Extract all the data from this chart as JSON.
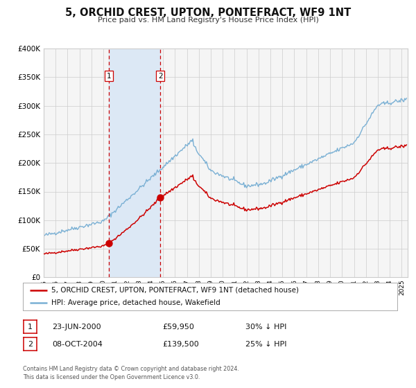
{
  "title": "5, ORCHID CREST, UPTON, PONTEFRACT, WF9 1NT",
  "subtitle": "Price paid vs. HM Land Registry's House Price Index (HPI)",
  "legend_line1": "5, ORCHID CREST, UPTON, PONTEFRACT, WF9 1NT (detached house)",
  "legend_line2": "HPI: Average price, detached house, Wakefield",
  "property_color": "#cc0000",
  "hpi_color": "#7ab0d4",
  "transaction1_date": "23-JUN-2000",
  "transaction1_price": "£59,950",
  "transaction1_hpi": "30% ↓ HPI",
  "transaction2_date": "08-OCT-2004",
  "transaction2_price": "£139,500",
  "transaction2_hpi": "25% ↓ HPI",
  "footer": "Contains HM Land Registry data © Crown copyright and database right 2024.\nThis data is licensed under the Open Government Licence v3.0.",
  "ylim": [
    0,
    400000
  ],
  "yticks": [
    0,
    50000,
    100000,
    150000,
    200000,
    250000,
    300000,
    350000,
    400000
  ],
  "xlim_start": 1995.0,
  "xlim_end": 2025.5,
  "transaction1_x": 2000.47,
  "transaction2_x": 2004.77,
  "transaction1_y": 59950,
  "transaction2_y": 139500,
  "background_color": "#ffffff",
  "plot_bg_color": "#f5f5f5",
  "shade_color": "#dce8f5",
  "grid_color": "#cccccc",
  "box_color": "#cc0000"
}
